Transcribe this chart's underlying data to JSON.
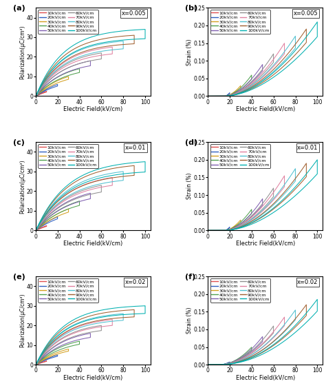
{
  "panels": [
    {
      "label": "a",
      "type": "P",
      "x_label": "x=0.005",
      "row": 0,
      "col": 0
    },
    {
      "label": "b",
      "type": "S",
      "x_label": "x=0.005",
      "row": 0,
      "col": 1
    },
    {
      "label": "c",
      "type": "P",
      "x_label": "x=0.01",
      "row": 1,
      "col": 0
    },
    {
      "label": "d",
      "type": "S",
      "x_label": "x=0.01",
      "row": 1,
      "col": 1
    },
    {
      "label": "e",
      "type": "P",
      "x_label": "x=0.02",
      "row": 2,
      "col": 0
    },
    {
      "label": "f",
      "type": "S",
      "x_label": "x=0.02",
      "row": 2,
      "col": 1
    }
  ],
  "fields": [
    10,
    20,
    30,
    40,
    50,
    60,
    70,
    80,
    90,
    100
  ],
  "colors": {
    "10": "#e05050",
    "20": "#3060c0",
    "30": "#d4a020",
    "40": "#50a050",
    "50": "#8060b0",
    "60": "#909090",
    "70": "#e080a0",
    "80": "#50c0d0",
    "90": "#a06030",
    "100": "#00b0b0"
  },
  "ylabel_P": "Polarization(μC/cm²)",
  "ylabel_S": "Strain (%)",
  "xlabel": "Electric Field(kV/cm)",
  "P_ylim": [
    0,
    45
  ],
  "P_yticks": [
    0,
    10,
    20,
    30,
    40
  ],
  "S_ylim": [
    0.0,
    0.25
  ],
  "S_yticks": [
    0.0,
    0.05,
    0.1,
    0.15,
    0.2,
    0.25
  ],
  "xticks": [
    0,
    20,
    40,
    60,
    80,
    100
  ],
  "xlim": [
    0,
    105
  ],
  "legend_left_fields": [
    10,
    30,
    50,
    70,
    90
  ],
  "legend_right_fields": [
    20,
    40,
    60,
    80,
    100
  ],
  "legend_left_labels": [
    "10kV/cm",
    "30kV/cm",
    "50kV/cm",
    "70kV/cm",
    "90kV/cm"
  ],
  "legend_right_labels": [
    "20kV/cm",
    "40kV/cm",
    "60kV/cm",
    "80kV/cm",
    "100kV/cm"
  ],
  "P_params": {
    "a": {
      "max_vals": {
        "10": 2.5,
        "20": 6,
        "30": 10,
        "40": 14,
        "50": 18,
        "60": 22,
        "70": 25,
        "80": 28,
        "90": 31,
        "100": 34
      },
      "alpha": 0.04,
      "ratio": 0.86
    },
    "c": {
      "max_vals": {
        "10": 2.5,
        "20": 7,
        "30": 11,
        "40": 15,
        "50": 19,
        "60": 23,
        "70": 27,
        "80": 30,
        "90": 33,
        "100": 35
      },
      "alpha": 0.035,
      "ratio": 0.85
    },
    "e": {
      "max_vals": {
        "10": 2,
        "20": 5,
        "30": 8,
        "40": 12,
        "50": 16,
        "60": 20,
        "70": 23,
        "80": 26,
        "90": 28,
        "100": 30
      },
      "alpha": 0.04,
      "ratio": 0.87
    }
  },
  "S_params": {
    "b": {
      "max_vals": {
        "10": 0.005,
        "20": 0.01,
        "30": 0.03,
        "40": 0.06,
        "50": 0.09,
        "60": 0.12,
        "70": 0.15,
        "80": 0.17,
        "90": 0.19,
        "100": 0.21
      },
      "dead": 15,
      "power": 1.8,
      "ratio": 0.8
    },
    "d": {
      "max_vals": {
        "10": 0.005,
        "20": 0.01,
        "30": 0.03,
        "40": 0.06,
        "50": 0.09,
        "60": 0.12,
        "70": 0.155,
        "80": 0.175,
        "90": 0.19,
        "100": 0.2
      },
      "dead": 15,
      "power": 1.8,
      "ratio": 0.8
    },
    "f": {
      "max_vals": {
        "10": 0.002,
        "20": 0.008,
        "30": 0.02,
        "40": 0.05,
        "50": 0.08,
        "60": 0.11,
        "70": 0.135,
        "80": 0.155,
        "90": 0.17,
        "100": 0.185
      },
      "dead": 10,
      "power": 2.0,
      "ratio": 0.82
    }
  }
}
